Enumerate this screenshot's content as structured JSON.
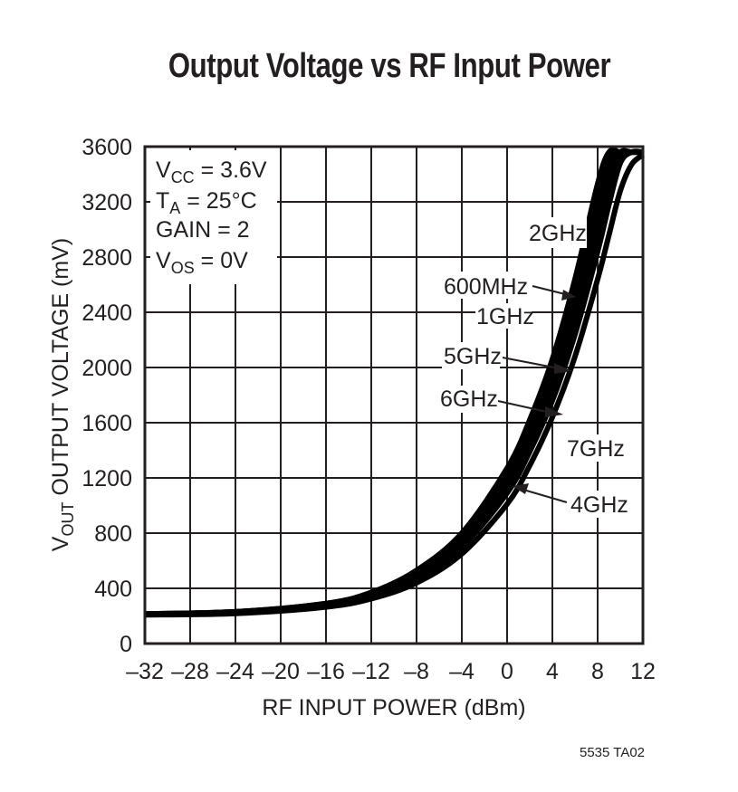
{
  "chart_data": {
    "type": "line",
    "title": "Output Voltage vs RF Input Power",
    "xlabel": "RF INPUT POWER (dBm)",
    "ylabel": "VOUT OUTPUT VOLTAGE (mV)",
    "xlim": [
      -32,
      12
    ],
    "ylim": [
      0,
      3600
    ],
    "xticks": [
      -32,
      -28,
      -24,
      -20,
      -16,
      -12,
      -8,
      -4,
      0,
      4,
      8,
      12
    ],
    "xtick_labels": [
      "–32",
      "–28",
      "–24",
      "–20",
      "–16",
      "–12",
      "–8",
      "–4",
      "0",
      "4",
      "8",
      "12"
    ],
    "yticks": [
      0,
      400,
      800,
      1200,
      1600,
      2000,
      2400,
      2800,
      3200,
      3600
    ],
    "grid": true,
    "conditions": [
      "VCC = 3.6V",
      "TA = 25°C",
      "GAIN = 2",
      "VOS = 0V"
    ],
    "x": [
      -32,
      -24,
      -16,
      -12,
      -8,
      -4,
      0,
      2,
      4,
      6,
      8,
      9,
      10,
      11,
      12
    ],
    "series": [
      {
        "name": "600MHz",
        "values": [
          215,
          230,
          290,
          370,
          520,
          780,
          1230,
          1560,
          1980,
          2520,
          3180,
          3500,
          3560,
          3560,
          3560
        ]
      },
      {
        "name": "2GHz",
        "values": [
          215,
          230,
          290,
          370,
          530,
          800,
          1270,
          1620,
          2060,
          2640,
          3330,
          3560,
          3560,
          3560,
          3560
        ]
      },
      {
        "name": "1GHz",
        "values": [
          215,
          230,
          285,
          360,
          510,
          760,
          1190,
          1510,
          1920,
          2440,
          3080,
          3420,
          3560,
          3560,
          3560
        ]
      },
      {
        "name": "5GHz",
        "values": [
          210,
          225,
          280,
          350,
          490,
          730,
          1140,
          1450,
          1840,
          2340,
          2960,
          3300,
          3540,
          3560,
          3560
        ]
      },
      {
        "name": "6GHz",
        "values": [
          210,
          222,
          275,
          340,
          470,
          700,
          1090,
          1390,
          1760,
          2240,
          2840,
          3180,
          3480,
          3560,
          3560
        ]
      },
      {
        "name": "4GHz",
        "values": [
          210,
          222,
          275,
          345,
          480,
          710,
          1110,
          1410,
          1790,
          2280,
          2890,
          3230,
          3510,
          3560,
          3560
        ]
      },
      {
        "name": "7GHz",
        "values": [
          208,
          218,
          265,
          325,
          440,
          650,
          1010,
          1290,
          1640,
          2080,
          2640,
          2960,
          3280,
          3470,
          3540
        ]
      }
    ],
    "annotations": [
      "2GHz",
      "600MHz",
      "1GHz",
      "5GHz",
      "6GHz",
      "7GHz",
      "4GHz"
    ],
    "figure_code": "5535 TA02"
  }
}
